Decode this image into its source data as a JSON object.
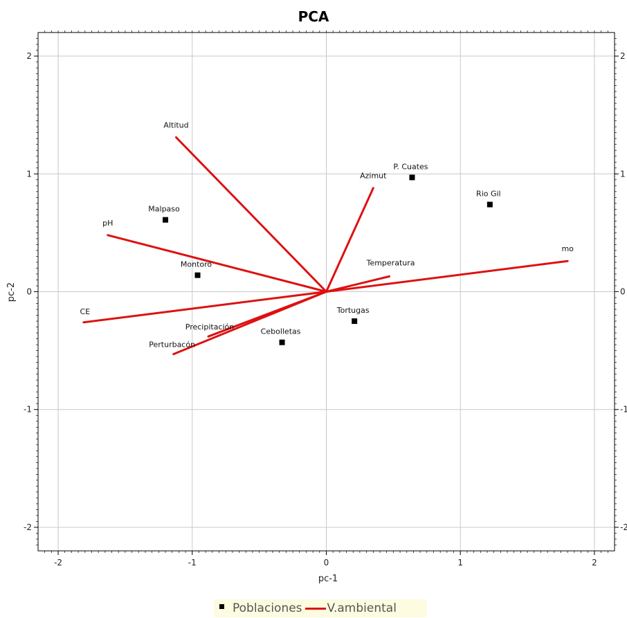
{
  "chart_data": {
    "type": "scatter",
    "title": "PCA",
    "xlabel": "pc-1",
    "ylabel": "pc-2",
    "xlim": [
      -2.15,
      2.15
    ],
    "ylim": [
      -2.2,
      2.2
    ],
    "xticks": [
      "-2",
      "-1",
      "0",
      "1",
      "2"
    ],
    "yticks": [
      "-2",
      "-1",
      "0",
      "1",
      "2"
    ],
    "yticks_right": [
      "-2",
      "-1",
      "0",
      "1",
      "2"
    ],
    "grid": true,
    "legend_position": "bottom-center",
    "colors": {
      "points": "#000000",
      "vectors": "#dd1111",
      "grid": "#c8c8c8",
      "legend_bg": "#fdfbe0"
    },
    "series": [
      {
        "name": "Poblaciones",
        "kind": "points",
        "points": [
          {
            "label": "P. Cuates",
            "x": 0.64,
            "y": 0.97
          },
          {
            "label": "Rio Gil",
            "x": 1.22,
            "y": 0.74
          },
          {
            "label": "Malpaso",
            "x": -1.2,
            "y": 0.61
          },
          {
            "label": "Montoro",
            "x": -0.96,
            "y": 0.14
          },
          {
            "label": "Tortugas",
            "x": 0.21,
            "y": -0.25
          },
          {
            "label": "Cebolletas",
            "x": -0.33,
            "y": -0.43
          }
        ]
      },
      {
        "name": "V.ambiental",
        "kind": "vectors",
        "vectors": [
          {
            "label": "Altitud",
            "x": -1.12,
            "y": 1.31
          },
          {
            "label": "Azimut",
            "x": 0.35,
            "y": 0.88
          },
          {
            "label": "pH",
            "x": -1.63,
            "y": 0.48
          },
          {
            "label": "mo",
            "x": 1.8,
            "y": 0.26
          },
          {
            "label": "Temperatura",
            "x": 0.47,
            "y": 0.13
          },
          {
            "label": "CE",
            "x": -1.81,
            "y": -0.26
          },
          {
            "label": "Precipitación",
            "x": -0.88,
            "y": -0.38
          },
          {
            "label": "Perturbacón",
            "x": -1.14,
            "y": -0.53
          }
        ]
      }
    ]
  },
  "legend": {
    "points_label": "Poblaciones",
    "vectors_label": "V.ambiental"
  }
}
